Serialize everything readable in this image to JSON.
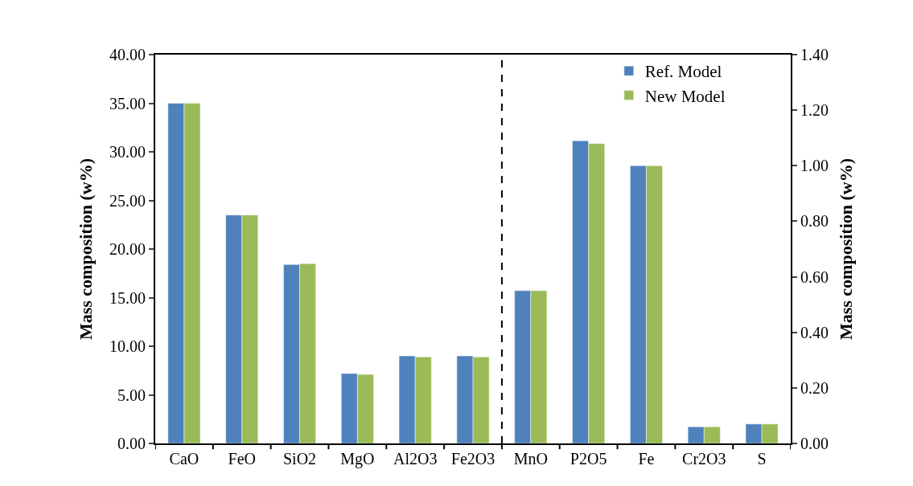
{
  "chart_data": {
    "type": "bar",
    "ylabel": "Mass composition (w%)",
    "y2label": "Mass composition (w%)",
    "categories": [
      "CaO",
      "FeO",
      "SiO2",
      "MgO",
      "Al2O3",
      "Fe2O3",
      "MnO",
      "P2O5",
      "Fe",
      "Cr2O3",
      "S"
    ],
    "series": [
      {
        "name": "Ref. Model",
        "color": "#4f81bd",
        "values": [
          35.0,
          23.5,
          18.4,
          7.2,
          9.0,
          9.0,
          null,
          null,
          null,
          null,
          null
        ]
      },
      {
        "name": "New Model",
        "color": "#9bbb59",
        "values": [
          35.0,
          23.5,
          18.5,
          7.1,
          8.9,
          8.9,
          null,
          null,
          null,
          null,
          null
        ]
      },
      {
        "color": "#4f81bd",
        "axis": "y2",
        "values": [
          null,
          null,
          null,
          null,
          null,
          null,
          0.55,
          1.09,
          1.0,
          0.06,
          0.07
        ]
      },
      {
        "color": "#9bbb59",
        "axis": "y2",
        "values": [
          null,
          null,
          null,
          null,
          null,
          null,
          0.55,
          1.08,
          1.0,
          0.06,
          0.07
        ]
      }
    ],
    "ylim": [
      0,
      40
    ],
    "yticks": [
      {
        "value": 0,
        "label": "0.00"
      },
      {
        "value": 5,
        "label": "5.00"
      },
      {
        "value": 10,
        "label": "10.00"
      },
      {
        "value": 15,
        "label": "15.00"
      },
      {
        "value": 20,
        "label": "20.00"
      },
      {
        "value": 25,
        "label": "25.00"
      },
      {
        "value": 30,
        "label": "30.00"
      },
      {
        "value": 35,
        "label": "35.00"
      },
      {
        "value": 40,
        "label": "40.00"
      }
    ],
    "y2lim": [
      0,
      1.4
    ],
    "y2ticks": [
      {
        "value": 0,
        "label": "0.00"
      },
      {
        "value": 0.2,
        "label": "0.20"
      },
      {
        "value": 0.4,
        "label": "0.40"
      },
      {
        "value": 0.6,
        "label": "0.60"
      },
      {
        "value": 0.8,
        "label": "0.80"
      },
      {
        "value": 1.0,
        "label": "1.00"
      },
      {
        "value": 1.2,
        "label": "1.20"
      },
      {
        "value": 1.4,
        "label": "1.40"
      }
    ],
    "legend": "top right"
  }
}
